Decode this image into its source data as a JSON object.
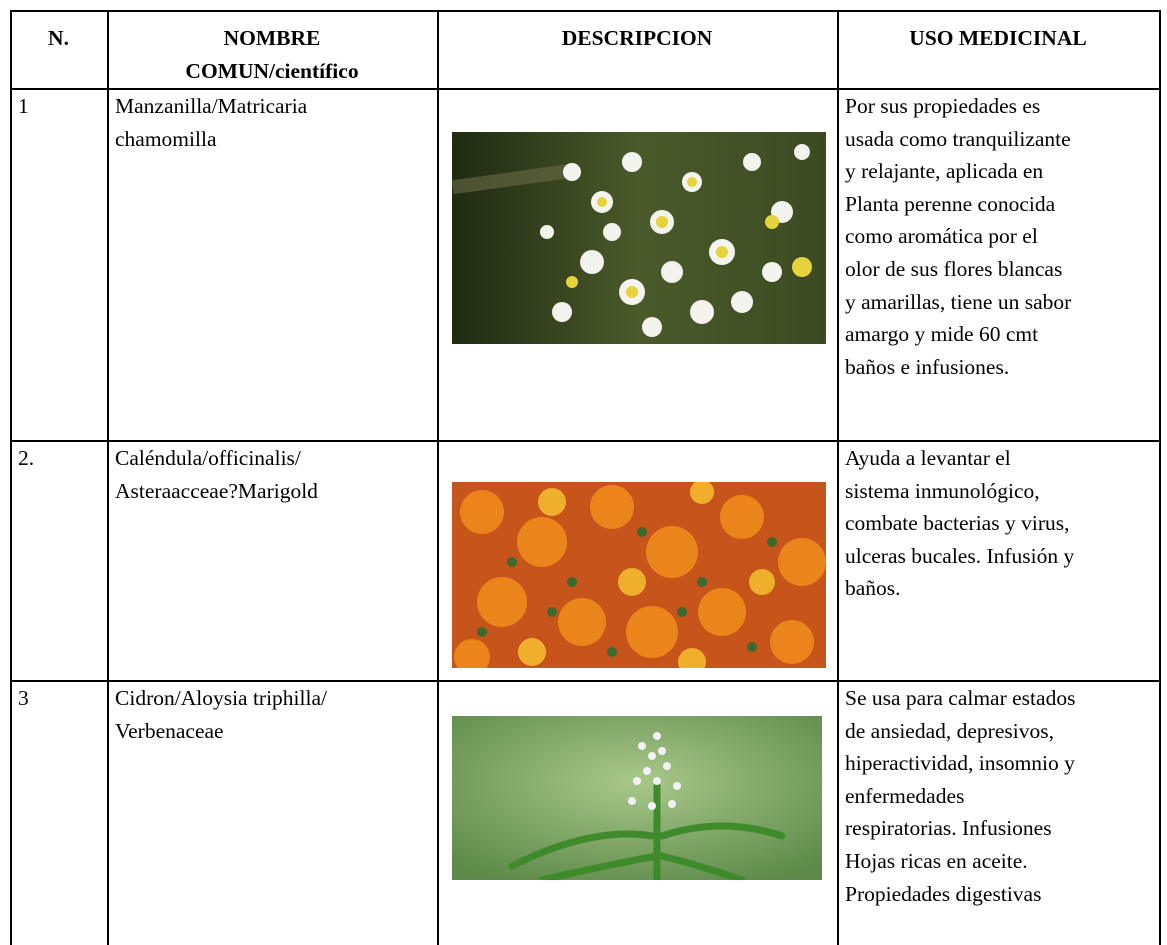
{
  "table": {
    "header": [
      [
        "N."
      ],
      [
        "NOMBRE",
        "COMUN/científico"
      ],
      [
        "DESCRIPCION"
      ],
      [
        "USO MEDICINAL"
      ]
    ],
    "rows": [
      [
        [
          "1"
        ],
        [
          "Manzanilla/Matricaria",
          "chamomilla"
        ],
        [],
        [
          "Por sus propiedades es",
          "usada como tranquilizante",
          "y relajante, aplicada en",
          "Planta perenne conocida",
          "como aromática por el",
          "olor de sus flores blancas",
          "y amarillas, tiene un sabor",
          "amargo y mide 60 cmt",
          "baños e infusiones."
        ]
      ],
      [
        [
          "2."
        ],
        [
          "Caléndula/officinalis/",
          "Asteraacceae?Marigold"
        ],
        [],
        [
          "Ayuda a levantar el",
          "sistema inmunológico,",
          "combate bacterias y virus,",
          "ulceras bucales. Infusión y",
          "baños."
        ]
      ],
      [
        [
          "3"
        ],
        [
          "Cidron/Aloysia triphilla/",
          "Verbenaceae"
        ],
        [],
        [
          "Se usa para calmar estados",
          "de ansiedad, depresivos,",
          "hiperactividad, insomnio y",
          "enfermedades",
          "respiratorias. Infusiones",
          "Hojas ricas en aceite.",
          "Propiedades digestivas"
        ]
      ]
    ]
  }
}
